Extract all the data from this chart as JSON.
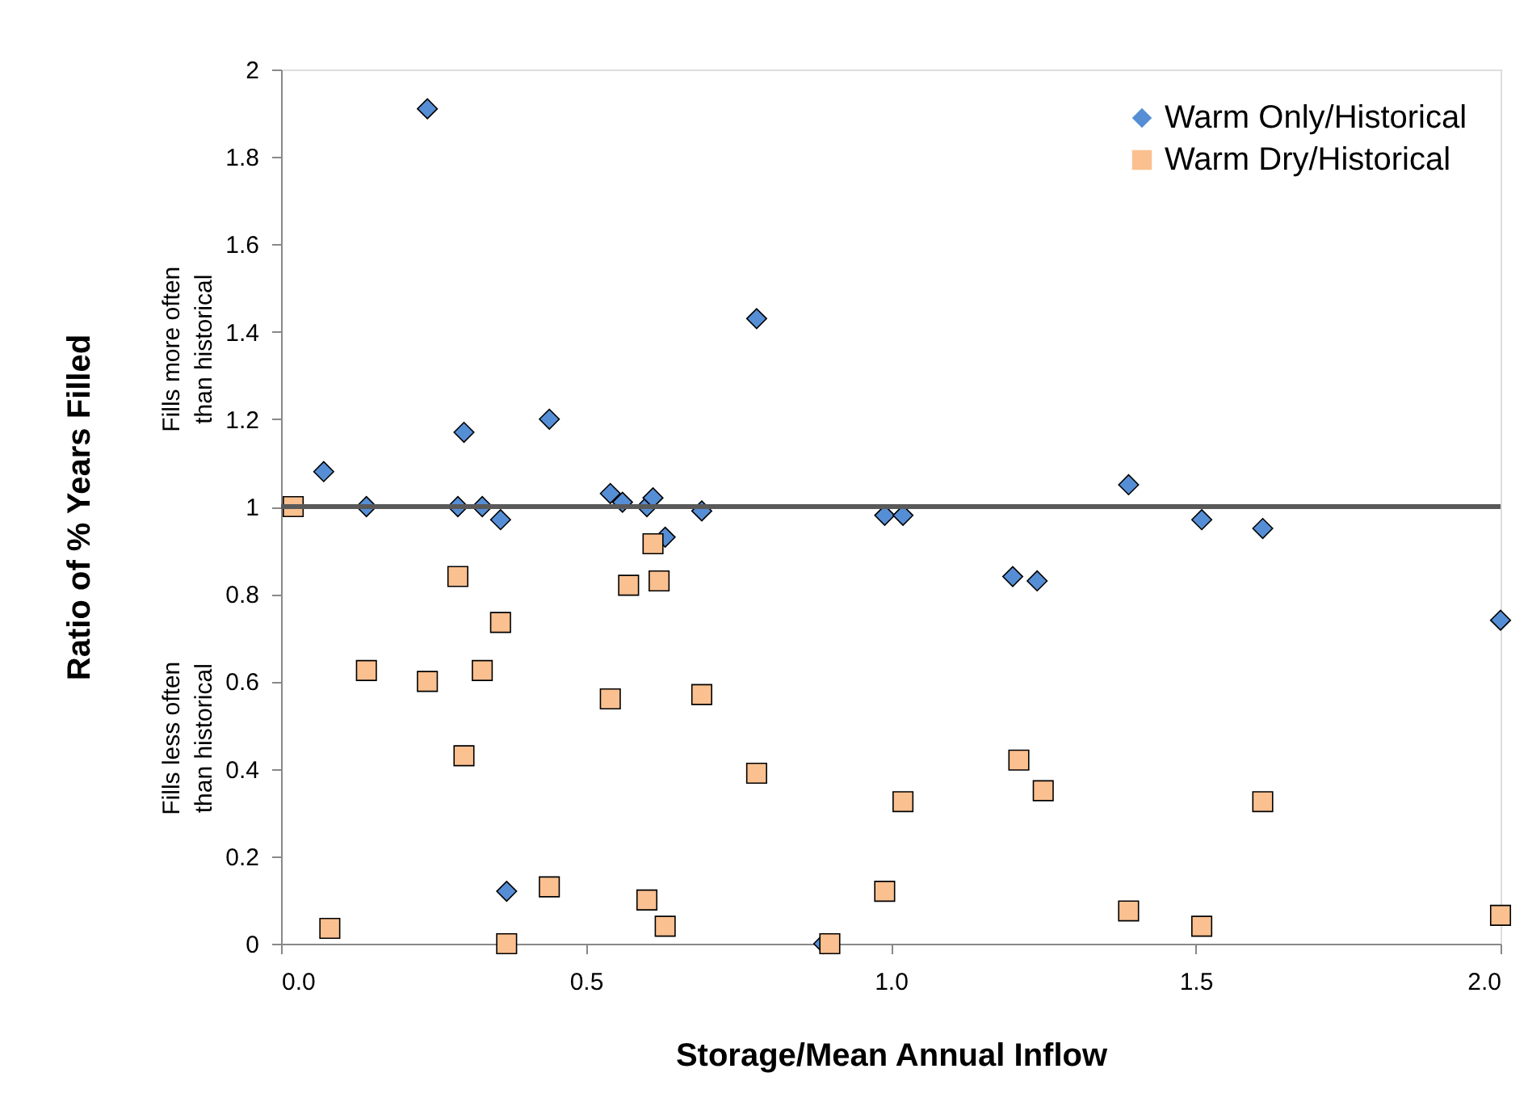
{
  "chart_data": {
    "type": "scatter",
    "xlabel": "Storage/Mean Annual Inflow",
    "ylabel": "Ratio of % Years Filled",
    "annotations": [
      "Fills more often\nthan historical",
      "Fills less often\nthan historical"
    ],
    "series": [
      {
        "name": "Warm Only/Historical",
        "color": "#558ed5",
        "marker": "diamond",
        "x": [
          0.07,
          0.14,
          0.24,
          0.29,
          0.3,
          0.33,
          0.36,
          0.37,
          0.44,
          0.54,
          0.56,
          0.6,
          0.61,
          0.63,
          0.69,
          0.78,
          0.89,
          0.99,
          1.02,
          1.2,
          1.24,
          1.39,
          1.51,
          1.61,
          2.0
        ],
        "values": [
          1.08,
          1.0,
          1.91,
          1.0,
          1.17,
          1.0,
          0.97,
          0.12,
          1.2,
          1.03,
          1.01,
          1.0,
          1.02,
          0.93,
          0.99,
          1.43,
          0.0,
          0.98,
          0.98,
          0.84,
          0.83,
          1.05,
          0.97,
          0.95,
          0.74
        ]
      },
      {
        "name": "Warm Dry/Historical",
        "color": "#fac090",
        "marker": "square",
        "x": [
          0.02,
          0.08,
          0.14,
          0.24,
          0.29,
          0.3,
          0.33,
          0.36,
          0.37,
          0.44,
          0.54,
          0.57,
          0.6,
          0.61,
          0.62,
          0.63,
          0.69,
          0.78,
          0.9,
          0.99,
          1.02,
          1.21,
          1.25,
          1.39,
          1.51,
          1.61,
          2.0
        ],
        "values": [
          1.0,
          0.035,
          0.625,
          0.6,
          0.84,
          0.43,
          0.625,
          0.735,
          0.0,
          0.13,
          0.56,
          0.82,
          0.1,
          0.915,
          0.83,
          0.04,
          0.57,
          0.39,
          0.0,
          0.12,
          0.325,
          0.42,
          0.35,
          0.075,
          0.04,
          0.325,
          0.065
        ]
      }
    ],
    "ref_lines": [
      {
        "axis": "y",
        "value": 1,
        "color": "#595959"
      }
    ],
    "xlim": [
      0,
      2
    ],
    "xticks": [
      {
        "value": 0,
        "label": "0.0"
      },
      {
        "value": 0.5,
        "label": "0.5"
      },
      {
        "value": 1,
        "label": "1.0"
      },
      {
        "value": 1.5,
        "label": "1.5"
      },
      {
        "value": 2,
        "label": "2.0"
      }
    ],
    "ylim": [
      0,
      2
    ],
    "yticks": [
      0,
      0.2,
      0.4,
      0.6,
      0.8,
      1,
      1.2,
      1.4,
      1.6,
      1.8,
      2
    ],
    "grid": false,
    "legend": "top right"
  }
}
